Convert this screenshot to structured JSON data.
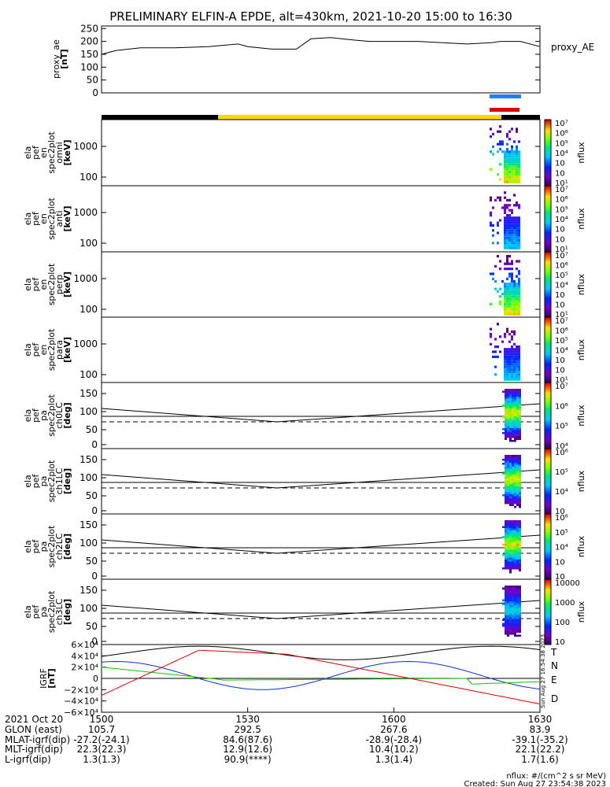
{
  "title": "PRELIMINARY ELFIN-A EPDE, alt=430km, 2021-10-20 15:00 to 16:30",
  "colors": {
    "night_bar": "#000000",
    "day_bar": "#ffd800",
    "blue_marker": "#1f7fff",
    "red_marker": "#e00000",
    "bx": "#000000",
    "by": "#1030d0",
    "bz": "#10c010",
    "bd": "#e00000"
  },
  "chart_data": [
    {
      "type": "line",
      "id": "proxy_ae",
      "ylabel_lines": [
        "proxy_ae",
        "[nT]"
      ],
      "side_label": "proxy_AE",
      "ylim": [
        0,
        260
      ],
      "yticks": [
        0,
        50,
        100,
        150,
        200,
        250
      ],
      "x_minutes": [
        0,
        3,
        8,
        15,
        22,
        28,
        30,
        35,
        40,
        43,
        47,
        52,
        55,
        60,
        65,
        70,
        75,
        80,
        82,
        86,
        90
      ],
      "values": [
        150,
        165,
        175,
        175,
        180,
        190,
        180,
        170,
        170,
        210,
        215,
        205,
        200,
        200,
        200,
        195,
        190,
        195,
        200,
        200,
        180
      ]
    },
    {
      "type": "heatmap",
      "id": "en_omni",
      "ylabel_lines": [
        "ela",
        "pef",
        "en",
        "spec2plot",
        "omni",
        "[keV]"
      ],
      "yticks": [
        "1000",
        "100"
      ],
      "colorbar": {
        "label": "nflux",
        "ticks": [
          "10⁷",
          "10⁶",
          "10⁵",
          "10⁴",
          "10⁳",
          "10⁲",
          "10¹"
        ]
      }
    },
    {
      "type": "heatmap",
      "id": "en_anti",
      "ylabel_lines": [
        "ela",
        "pef",
        "en",
        "spec2plot",
        "anti",
        "[keV]"
      ],
      "yticks": [
        "1000",
        "100"
      ],
      "colorbar": {
        "label": "nflux",
        "ticks": [
          "10⁷",
          "10⁶",
          "10⁵",
          "10⁴",
          "10⁳",
          "10⁲",
          "10¹"
        ]
      }
    },
    {
      "type": "heatmap",
      "id": "en_perp",
      "ylabel_lines": [
        "ela",
        "pef",
        "en",
        "spec2plot",
        "perp",
        "[keV]"
      ],
      "yticks": [
        "1000",
        "100"
      ],
      "colorbar": {
        "label": "nflux",
        "ticks": [
          "10⁷",
          "10⁶",
          "10⁵",
          "10⁴",
          "10⁳",
          "10⁲",
          "10¹"
        ]
      }
    },
    {
      "type": "heatmap",
      "id": "en_para",
      "ylabel_lines": [
        "ela",
        "pef",
        "en",
        "spec2plot",
        "para",
        "[keV]"
      ],
      "yticks": [
        "1000",
        "100"
      ],
      "colorbar": {
        "label": "nflux",
        "ticks": [
          "10⁷",
          "10⁶",
          "10⁵",
          "10⁴",
          "10⁳",
          "10⁲",
          "10¹"
        ]
      }
    },
    {
      "type": "heatmap",
      "id": "pa_ch0",
      "ylabel_lines": [
        "ela",
        "pef",
        "pa",
        "spec2plot",
        "ch0LC",
        "[deg]"
      ],
      "yticks": [
        "150",
        "100",
        "50",
        "0"
      ],
      "colorbar": {
        "label": "nflux",
        "ticks": [
          "10⁷",
          "10⁶",
          "10⁵",
          "10⁴"
        ]
      }
    },
    {
      "type": "heatmap",
      "id": "pa_ch1",
      "ylabel_lines": [
        "ela",
        "pef",
        "pa",
        "spec2plot",
        "ch1LC",
        "[deg]"
      ],
      "yticks": [
        "150",
        "100",
        "50",
        "0"
      ],
      "colorbar": {
        "label": "nflux",
        "ticks": [
          "10⁶",
          "10⁵",
          "10⁴",
          "10⁳"
        ]
      }
    },
    {
      "type": "heatmap",
      "id": "pa_ch2",
      "ylabel_lines": [
        "ela",
        "pef",
        "pa",
        "spec2plot",
        "ch2LC",
        "[deg]"
      ],
      "yticks": [
        "150",
        "100",
        "50",
        "0"
      ],
      "colorbar": {
        "label": "nflux",
        "ticks": [
          "10⁶",
          "10⁵",
          "10⁴",
          "10⁳",
          "10⁲"
        ]
      }
    },
    {
      "type": "heatmap",
      "id": "pa_ch3",
      "ylabel_lines": [
        "ela",
        "pef",
        "pa",
        "spec2plot",
        "ch3LC",
        "[deg]"
      ],
      "yticks": [
        "150",
        "100",
        "50",
        "0"
      ],
      "colorbar": {
        "label": "nflux",
        "ticks": [
          "10000",
          "1000",
          "100",
          "10"
        ]
      }
    },
    {
      "type": "line",
      "id": "igrf",
      "ylabel_lines": [
        "IGRF",
        "[nT]"
      ],
      "yticks": [
        "6×10⁴",
        "4×10⁴",
        "2×10⁴",
        "0",
        "−2×10⁴",
        "−4×10⁴",
        "−6×10⁴"
      ],
      "ylim": [
        -60000,
        60000
      ],
      "legend": [
        "T",
        "N",
        "E",
        "D"
      ],
      "stamp": "Sun Aug 27 16:54:38 2023"
    }
  ],
  "xaxis": {
    "ticks": [
      "1500",
      "1530",
      "1600",
      "1630"
    ],
    "rows": [
      {
        "label": "2021 Oct 20",
        "values": [
          "1500",
          "1530",
          "1600",
          "1630"
        ]
      },
      {
        "label": "GLON (east)",
        "values": [
          "105.7",
          "292.5",
          "267.6",
          "83.9"
        ]
      },
      {
        "label": "MLAT-igrf(dip)",
        "values": [
          "-27.2(-24.1)",
          "84.6(87.6)",
          "-28.9(-28.4)",
          "-39.1(-35.2)"
        ]
      },
      {
        "label": "MLT-igrf(dip)",
        "values": [
          "22.3(22.3)",
          "12.9(12.6)",
          "10.4(10.2)",
          "22.1(22.2)"
        ]
      },
      {
        "label": "L-igrf(dip)",
        "values": [
          "1.3(1.3)",
          "90.9(****)",
          "1.3(1.4)",
          "1.7(1.6)"
        ]
      }
    ]
  },
  "footer": {
    "units": "nflux: #/(cm^2 s sr MeV)",
    "created": "Created: Sun Aug 27 23:54:38 2023"
  }
}
